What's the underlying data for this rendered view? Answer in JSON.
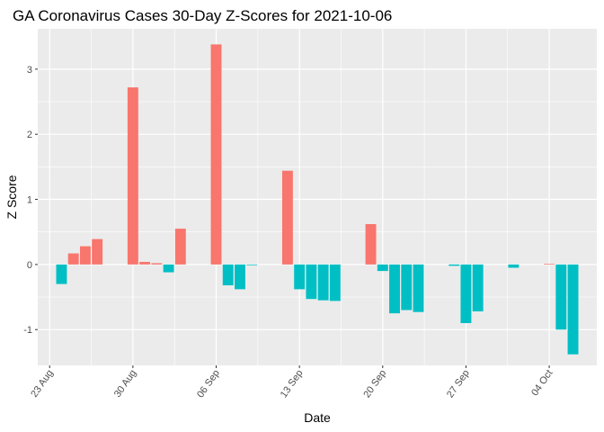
{
  "chart_data": {
    "type": "bar",
    "title": "GA Coronavirus Cases 30-Day Z-Scores for 2021-10-06",
    "xlabel": "Date",
    "ylabel": "Z Score",
    "x_ticks": [
      {
        "date": "2021-08-23",
        "label": "23 Aug"
      },
      {
        "date": "2021-08-30",
        "label": "30 Aug"
      },
      {
        "date": "2021-09-06",
        "label": "06 Sep"
      },
      {
        "date": "2021-09-13",
        "label": "13 Sep"
      },
      {
        "date": "2021-09-20",
        "label": "20 Sep"
      },
      {
        "date": "2021-09-27",
        "label": "27 Sep"
      },
      {
        "date": "2021-10-04",
        "label": "04 Oct"
      }
    ],
    "y_ticks": [
      3,
      2,
      1,
      0,
      -1
    ],
    "xlim": [
      "2021-08-22",
      "2021-10-08"
    ],
    "ylim": [
      -1.55,
      3.62
    ],
    "grid": true,
    "colors": {
      "positive": "#F8766D",
      "negative": "#00BFC4",
      "panel": "#EBEBEB",
      "grid": "#FFFFFF"
    },
    "dates": [
      "2021-08-24",
      "2021-08-25",
      "2021-08-26",
      "2021-08-27",
      "2021-08-28",
      "2021-08-29",
      "2021-08-30",
      "2021-08-31",
      "2021-09-01",
      "2021-09-02",
      "2021-09-03",
      "2021-09-04",
      "2021-09-05",
      "2021-09-06",
      "2021-09-07",
      "2021-09-08",
      "2021-09-09",
      "2021-09-10",
      "2021-09-11",
      "2021-09-12",
      "2021-09-13",
      "2021-09-14",
      "2021-09-15",
      "2021-09-16",
      "2021-09-17",
      "2021-09-18",
      "2021-09-19",
      "2021-09-20",
      "2021-09-21",
      "2021-09-22",
      "2021-09-23",
      "2021-09-24",
      "2021-09-25",
      "2021-09-26",
      "2021-09-27",
      "2021-09-28",
      "2021-09-29",
      "2021-09-30",
      "2021-10-01",
      "2021-10-02",
      "2021-10-03",
      "2021-10-04",
      "2021-10-05",
      "2021-10-06"
    ],
    "values": [
      -0.3,
      0.17,
      0.28,
      0.39,
      0,
      0,
      2.72,
      0.04,
      0.02,
      -0.12,
      0.55,
      0,
      0,
      3.38,
      -0.32,
      -0.38,
      -0.01,
      0,
      0,
      1.44,
      -0.38,
      -0.53,
      -0.55,
      -0.56,
      0,
      0,
      0.62,
      -0.1,
      -0.75,
      -0.7,
      -0.73,
      0,
      0,
      -0.02,
      -0.9,
      -0.72,
      0,
      0,
      -0.05,
      0,
      0,
      0.01,
      -1.0,
      -1.38
    ]
  }
}
